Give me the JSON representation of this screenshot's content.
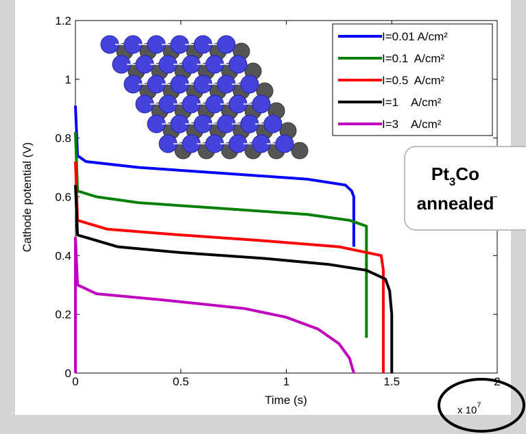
{
  "chart_data": {
    "type": "line",
    "xlabel": "Time (s)",
    "ylabel": "Cathode potential (V)",
    "x_multiplier": {
      "base": "x 10",
      "exponent": "7"
    },
    "annotation": {
      "parts": [
        "Pt",
        "3",
        "Co"
      ],
      "line2": "annealed"
    },
    "xlim": [
      0,
      2
    ],
    "xticks": [
      0,
      0.5,
      1,
      1.5,
      2
    ],
    "ylim": [
      0,
      1.2
    ],
    "yticks": [
      0,
      0.2,
      0.4,
      0.6,
      0.8,
      1,
      1.2
    ],
    "grid": false,
    "legend": "upper right",
    "series": [
      {
        "name": "I=0.01 A/cm²",
        "color": "#0000ff",
        "x": [
          0,
          0.01,
          0.05,
          0.3,
          0.7,
          1.1,
          1.28,
          1.31,
          1.32,
          1.32
        ],
        "values": [
          0.91,
          0.74,
          0.72,
          0.7,
          0.68,
          0.66,
          0.64,
          0.62,
          0.6,
          0.43
        ]
      },
      {
        "name": "I=0.1  A/cm²",
        "color": "#008000",
        "x": [
          0,
          0.01,
          0.1,
          0.3,
          0.7,
          1.1,
          1.3,
          1.38,
          1.38
        ],
        "values": [
          0.82,
          0.62,
          0.6,
          0.58,
          0.56,
          0.54,
          0.52,
          0.5,
          0.12
        ]
      },
      {
        "name": "I=0.5  A/cm²",
        "color": "#ff0000",
        "x": [
          0,
          0.01,
          0.15,
          0.5,
          0.9,
          1.25,
          1.45,
          1.46,
          1.46
        ],
        "values": [
          0.72,
          0.52,
          0.49,
          0.47,
          0.45,
          0.43,
          0.4,
          0.35,
          0
        ]
      },
      {
        "name": "I=1    A/cm²",
        "color": "#000000",
        "x": [
          0,
          0.01,
          0.2,
          0.5,
          0.9,
          1.2,
          1.38,
          1.47,
          1.49,
          1.5,
          1.5
        ],
        "values": [
          0.64,
          0.47,
          0.43,
          0.41,
          0.39,
          0.37,
          0.35,
          0.32,
          0.28,
          0.2,
          0
        ]
      },
      {
        "name": "I=3    A/cm²",
        "color": "#bf00bf",
        "x": [
          0,
          0,
          0.01,
          0.1,
          0.4,
          0.8,
          1.0,
          1.15,
          1.25,
          1.3,
          1.32
        ],
        "values": [
          0,
          0.46,
          0.3,
          0.27,
          0.25,
          0.22,
          0.19,
          0.15,
          0.1,
          0.05,
          0
        ]
      }
    ]
  }
}
